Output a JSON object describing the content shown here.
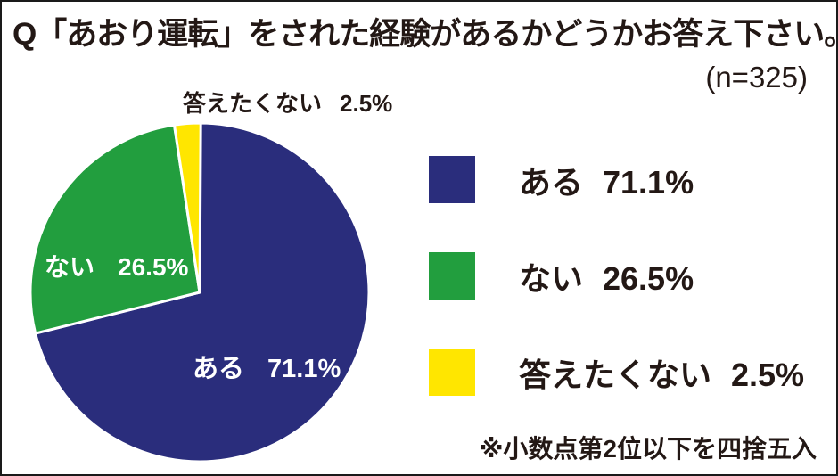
{
  "title": "Q「あおり運転」をされた経験があるかどうかお答え下さい。",
  "sample_size": "(n=325)",
  "footnote": "※小数点第2位以下を四捨五入",
  "chart_data": {
    "type": "pie",
    "title": "Q「あおり運転」をされた経験があるかどうかお答え下さい。",
    "n": 325,
    "categories": [
      "ある",
      "ない",
      "答えたくない"
    ],
    "values": [
      71.1,
      26.5,
      2.5
    ],
    "unit": "%",
    "colors": [
      "#2A2D7C",
      "#229E3E",
      "#FFE600"
    ],
    "start_angle_deg": 0,
    "direction": "clockwise",
    "legend_position": "right",
    "slice_border_color": "#FFFFFF"
  },
  "pie_labels": {
    "callout": {
      "label": "答えたくない",
      "value": "2.5%"
    },
    "nai": {
      "label": "ない",
      "value": "26.5%"
    },
    "aru": {
      "label": "ある",
      "value": "71.1%"
    }
  },
  "legend": {
    "items": [
      {
        "label": "ある",
        "value": "71.1%",
        "color": "#2A2D7C"
      },
      {
        "label": "ない",
        "value": "26.5%",
        "color": "#229E3E"
      },
      {
        "label": "答えたくない",
        "value": "2.5%",
        "color": "#FFE600"
      }
    ]
  }
}
